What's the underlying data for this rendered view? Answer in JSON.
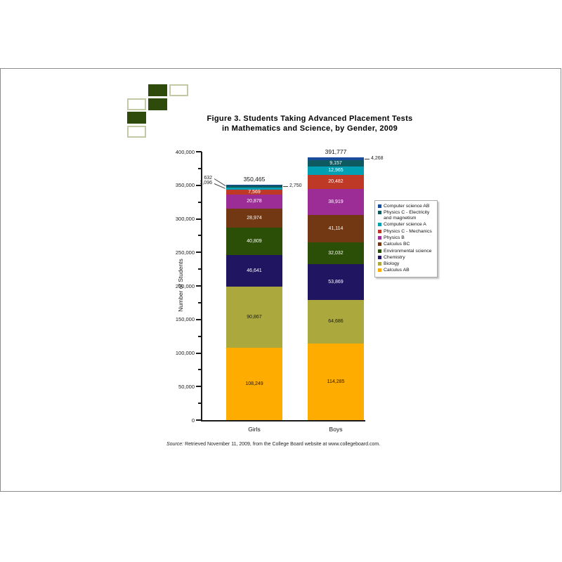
{
  "figure": {
    "title_line1": "Figure 3. Students Taking Advanced Placement Tests",
    "title_line2": "in Mathematics and Science, by Gender, 2009",
    "source_prefix": "Source:",
    "source_rest": " Retrieved November 11, 2009, from the College Board website at www.collegeboard.com."
  },
  "logo": {
    "fill_color": "#2E4B0C",
    "outline_color": "#C2C9A4",
    "cells": [
      {
        "row": 0,
        "col": 1,
        "filled": true
      },
      {
        "row": 0,
        "col": 2,
        "filled": false
      },
      {
        "row": 1,
        "col": 0,
        "filled": false
      },
      {
        "row": 1,
        "col": 1,
        "filled": true
      },
      {
        "row": 2,
        "col": 0,
        "filled": true
      },
      {
        "row": 3,
        "col": 0,
        "filled": false
      }
    ]
  },
  "chart_data": {
    "type": "stacked-bar",
    "title": "Figure 3. Students Taking Advanced Placement Tests in Mathematics and Science, by Gender, 2009",
    "ylabel": "Number of Students",
    "ylim": [
      0,
      400000
    ],
    "ytick_major": 50000,
    "ytick_minor": 25000,
    "grid": false,
    "legend_position": "right",
    "categories": [
      "Girls",
      "Boys"
    ],
    "totals": [
      350465,
      391777
    ],
    "total_labels": [
      "350,465",
      "391,777"
    ],
    "series": [
      {
        "name": "Calculus AB",
        "color": "#FFAC00",
        "label_color": "#1a1a1a",
        "values": [
          108249,
          114285
        ]
      },
      {
        "name": "Biology",
        "color": "#ABA83E",
        "label_color": "#1a1a1a",
        "values": [
          90867,
          64686
        ]
      },
      {
        "name": "Chemistry",
        "color": "#1F1560",
        "label_color": "#ffffff",
        "values": [
          46641,
          53869
        ]
      },
      {
        "name": "Environmental science",
        "color": "#2C4F08",
        "label_color": "#ffffff",
        "values": [
          40809,
          32032
        ]
      },
      {
        "name": "Calculus BC",
        "color": "#713813",
        "label_color": "#ffffff",
        "values": [
          28974,
          41114
        ]
      },
      {
        "name": "Physics B",
        "color": "#9C2D96",
        "label_color": "#ffffff",
        "values": [
          20878,
          38919
        ]
      },
      {
        "name": "Physics C - Mechanics",
        "color": "#BE3926",
        "label_color": "#ffffff",
        "values": [
          7569,
          20482
        ]
      },
      {
        "name": "Computer science A",
        "color": "#00A0B4",
        "label_color": "#ffffff",
        "values": [
          3096,
          12965
        ]
      },
      {
        "name": "Physics C - Electricity and magnetism",
        "color": "#0E5A60",
        "label_color": "#ffffff",
        "values": [
          2750,
          9157
        ]
      },
      {
        "name": "Computer science AB",
        "color": "#1A4B9B",
        "label_color": "#ffffff",
        "values": [
          632,
          4268
        ]
      }
    ],
    "callouts": [
      {
        "bar": 0,
        "series": "Computer science AB",
        "side": "left",
        "label": "632",
        "text_dy": -10
      },
      {
        "bar": 0,
        "series": "Computer science A",
        "side": "left",
        "label": "3,096",
        "text_dy": -7
      },
      {
        "bar": 0,
        "series": "Physics C - Electricity and magnetism",
        "side": "right",
        "label": "2,750",
        "text_dy": 0
      },
      {
        "bar": 1,
        "series": "Computer science AB",
        "side": "right",
        "label": "4,268",
        "text_dy": 0
      }
    ],
    "legend_items": [
      "Computer science AB",
      "Physics C - Electricity and magnetism",
      "Computer science A",
      "Physics C - Mechanics",
      "Physics B",
      "Calculus BC",
      "Environmental science",
      "Chemistry",
      "Biology",
      "Calculus AB"
    ]
  }
}
